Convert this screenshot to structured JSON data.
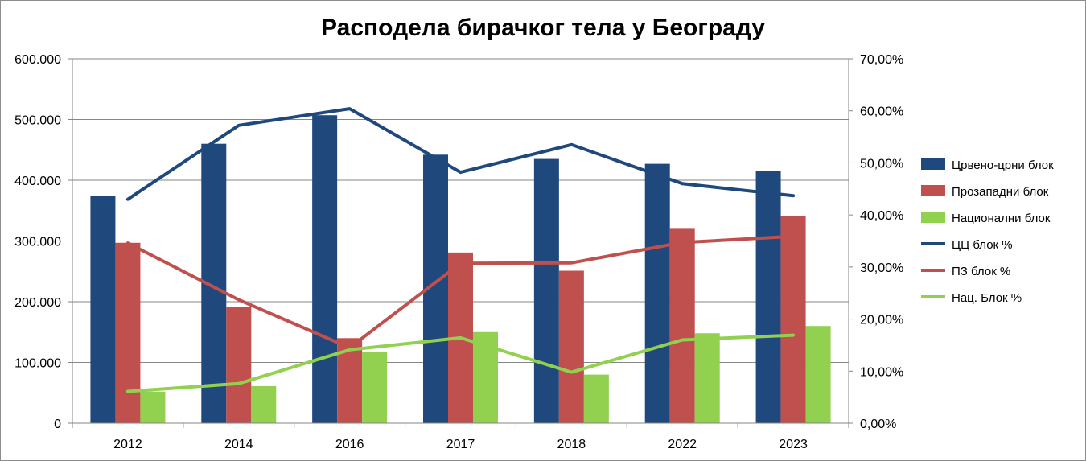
{
  "chart_data": {
    "type": "bar",
    "title": "Расподела бирачког тела у Београду",
    "categories": [
      "2012",
      "2014",
      "2016",
      "2017",
      "2018",
      "2022",
      "2023"
    ],
    "y_left": {
      "range": [
        0,
        600000
      ],
      "ticks": [
        0,
        100000,
        200000,
        300000,
        400000,
        500000,
        600000
      ],
      "tick_labels": [
        "0",
        "100.000",
        "200.000",
        "300.000",
        "400.000",
        "500.000",
        "600.000"
      ]
    },
    "y_right": {
      "range": [
        0,
        70
      ],
      "ticks": [
        0,
        10,
        20,
        30,
        40,
        50,
        60,
        70
      ],
      "tick_labels": [
        "0,00%",
        "10,00%",
        "20,00%",
        "30,00%",
        "40,00%",
        "50,00%",
        "60,00%",
        "70,00%"
      ]
    },
    "bar_series": [
      {
        "name": "Црвено-црни блок",
        "color": "#1f497d",
        "values": [
          374000,
          460000,
          507000,
          442000,
          435000,
          427000,
          415000
        ]
      },
      {
        "name": "Прозападни блок",
        "color": "#c0504d",
        "values": [
          297000,
          191000,
          140000,
          281000,
          251000,
          320000,
          341000
        ]
      },
      {
        "name": "Национални блок",
        "color": "#92d050",
        "values": [
          52000,
          61000,
          118000,
          150000,
          80000,
          148000,
          160000
        ]
      }
    ],
    "line_series": [
      {
        "name": "ЦЦ блок %",
        "color": "#1f497d",
        "axis": "right",
        "values": [
          43.0,
          57.2,
          60.4,
          48.2,
          53.5,
          46.0,
          43.7
        ]
      },
      {
        "name": "ПЗ блок %",
        "color": "#c0504d",
        "axis": "right",
        "values": [
          34.6,
          23.7,
          14.5,
          30.7,
          30.8,
          34.7,
          35.9
        ]
      },
      {
        "name": "Нац. Блок %",
        "color": "#92d050",
        "axis": "right",
        "values": [
          6.1,
          7.6,
          14.1,
          16.4,
          9.8,
          16.0,
          16.9
        ]
      }
    ],
    "legend": {
      "position": "right"
    },
    "grid": true
  }
}
